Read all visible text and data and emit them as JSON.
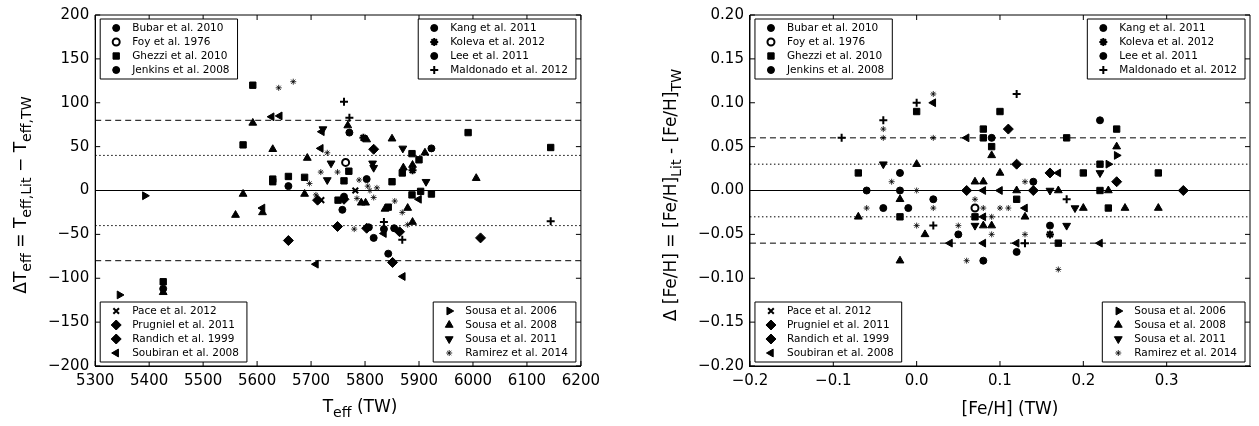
{
  "chart_data": [
    {
      "type": "scatter",
      "xlabel": "T$_{eff}$ (TW)",
      "ylabel": "ΔT$_{eff}$ = T$_{eff,Lit}$ − T$_{eff,TW}$",
      "xlim": [
        5300,
        6200
      ],
      "ylim": [
        -200,
        200
      ],
      "xticks": [
        5300,
        5400,
        5500,
        5600,
        5700,
        5800,
        5900,
        6000,
        6100,
        6200
      ],
      "yticks": [
        {
          "value": -200,
          "label": "−200"
        },
        {
          "value": -150,
          "label": "−150"
        },
        {
          "value": -100,
          "label": "−100"
        },
        {
          "value": -50,
          "label": "−50"
        },
        0,
        50,
        100,
        150,
        200
      ],
      "legend": "top left",
      "ref_lines": [
        {
          "axis": "y",
          "value": 80,
          "color": "#000000",
          "line_style": "dashed"
        },
        {
          "axis": "y",
          "value": -80,
          "color": "#000000",
          "line_style": "dashed"
        },
        {
          "axis": "y",
          "value": 40,
          "color": "#000000",
          "line_style": "dotted"
        },
        {
          "axis": "y",
          "value": -40,
          "color": "#000000",
          "line_style": "dotted"
        },
        {
          "axis": "y",
          "value": 0,
          "color": "#000000",
          "line_style": "solid"
        }
      ],
      "series": [
        {
          "name": "Bubar et al. 2010",
          "color": "#000000",
          "marker": "circle",
          "x": [
            5771,
            5658,
            5761,
            5426,
            5923
          ],
          "values": [
            66,
            5,
            -7,
            -112,
            48
          ]
        },
        {
          "name": "Foy et al. 1976",
          "color": "#000000",
          "marker": "open-circle",
          "x": [
            5764
          ],
          "values": [
            32
          ]
        },
        {
          "name": "Ghezzi et al. 2010",
          "color": "#000000",
          "marker": "square",
          "x": [
            5592,
            5574,
            5629,
            5629,
            5658,
            5688,
            5770,
            5761,
            5750,
            5426,
            5850,
            5869,
            5887,
            5900,
            5887,
            5903,
            5923,
            5991,
            6144,
            5843
          ],
          "values": [
            120,
            52,
            13,
            10,
            16,
            15,
            22,
            11,
            -11,
            -104,
            10,
            20,
            42,
            35,
            -5,
            -1,
            -4,
            66,
            49,
            -19
          ]
        },
        {
          "name": "Jenkins et al. 2008",
          "color": "#000000",
          "marker": "circle",
          "x": [
            5835
          ],
          "values": [
            -44
          ]
        },
        {
          "name": "Kang et al. 2011",
          "color": "#000000",
          "marker": "circle",
          "x": [
            5803,
            5854
          ],
          "values": [
            13,
            -43
          ]
        },
        {
          "name": "Koleva et al. 2012",
          "color": "#000000",
          "marker": "cross",
          "x": [
            5797,
            5888
          ],
          "values": [
            60,
            23
          ]
        },
        {
          "name": "Lee et al. 2011",
          "color": "#000000",
          "marker": "circle",
          "x": [
            5758,
            5807,
            5816,
            5843
          ],
          "values": [
            -22,
            -42,
            -54,
            -72
          ]
        },
        {
          "name": "Maldonado et al. 2012",
          "color": "#000000",
          "marker": "plus",
          "x": [
            5761,
            5771,
            5835,
            5869,
            6144
          ],
          "values": [
            101,
            83,
            -36,
            -56,
            -35
          ]
        },
        {
          "name": "Pace et al. 2012",
          "color": "#000000",
          "marker": "x",
          "x": [
            5782,
            5719
          ],
          "values": [
            0,
            -11
          ]
        },
        {
          "name": "Prugniel et al. 2011",
          "color": "#000000",
          "marker": "diamond",
          "x": [
            5658,
            5749,
            5712,
            5761,
            5816,
            5803,
            5864,
            5851
          ],
          "values": [
            -57,
            -41,
            -11,
            -10,
            47,
            -43,
            -47,
            -82
          ]
        },
        {
          "name": "Randich et al. 1999",
          "color": "#000000",
          "marker": "diamond",
          "x": [
            6014
          ],
          "values": [
            -54
          ]
        },
        {
          "name": "Soubiran et al. 2008",
          "color": "#000000",
          "marker": "triangle-left",
          "x": [
            5627,
            5642,
            5720,
            5718,
            5610,
            5709,
            5900,
            5870,
            5835
          ],
          "values": [
            84,
            85,
            67,
            48,
            -20,
            -84,
            -10,
            -98,
            -49
          ]
        },
        {
          "name": "Sousa et al. 2006",
          "color": "#000000",
          "marker": "triangle-right",
          "x": [
            5392,
            5345
          ],
          "values": [
            -6,
            -119
          ]
        },
        {
          "name": "Sousa et al. 2008",
          "color": "#000000",
          "marker": "triangle",
          "x": [
            5592,
            5768,
            5629,
            5693,
            5574,
            5560,
            5688,
            5801,
            5610,
            5426,
            5803,
            5850,
            5793,
            5871,
            5888,
            5911,
            6006,
            5879,
            5888,
            5837
          ],
          "values": [
            77,
            74,
            47,
            37,
            -4,
            -28,
            -4,
            -14,
            -25,
            -116,
            58,
            59,
            -14,
            26,
            29,
            43,
            14,
            -20,
            -36,
            -21
          ]
        },
        {
          "name": "Sousa et al. 2011",
          "color": "#000000",
          "marker": "triangle-down",
          "x": [
            5722,
            5737,
            5730,
            5814,
            5816,
            5870,
            5913
          ],
          "values": [
            70,
            31,
            12,
            31,
            26,
            48,
            10
          ]
        },
        {
          "name": "Ramirez et al. 2014",
          "color": "#000000",
          "x": [
            5640,
            5667,
            5730,
            5718,
            5697,
            5749,
            5709,
            5785,
            5780,
            5789,
            5805,
            5809,
            5822,
            5816,
            5855,
            5869,
            5879
          ],
          "values": [
            117,
            124,
            43,
            21,
            8,
            21,
            -5,
            -9,
            -44,
            12,
            5,
            0,
            3,
            -8,
            -12,
            -25,
            -39
          ]
        }
      ]
    },
    {
      "type": "scatter",
      "xlabel": "[Fe/H] (TW)",
      "ylabel": "Δ [Fe/H] = [Fe/H]$_{Lit}$ - [Fe/H]$_{TW}$",
      "xlim": [
        -0.2,
        0.4
      ],
      "ylim": [
        -0.2,
        0.2
      ],
      "xticks": [
        {
          "value": -0.2,
          "label": "−0.2"
        },
        {
          "value": -0.1,
          "label": "−0.1"
        },
        {
          "value": 0,
          "label": "0.0"
        },
        0.1,
        0.2,
        0.3
      ],
      "yticks": [
        {
          "value": -0.2,
          "label": "−0.20"
        },
        {
          "value": -0.15,
          "label": "−0.15"
        },
        {
          "value": -0.1,
          "label": "−0.10"
        },
        {
          "value": -0.05,
          "label": "−0.05"
        },
        {
          "value": 0,
          "label": "0.00"
        },
        0.05,
        {
          "value": 0.1,
          "label": "0.10"
        },
        0.15,
        {
          "value": 0.2,
          "label": "0.20"
        }
      ],
      "legend": "top left",
      "ref_lines": [
        {
          "axis": "y",
          "value": 0.06,
          "color": "#000000",
          "line_style": "dashed"
        },
        {
          "axis": "y",
          "value": -0.06,
          "color": "#000000",
          "line_style": "dashed"
        },
        {
          "axis": "y",
          "value": 0.03,
          "color": "#000000",
          "line_style": "dotted"
        },
        {
          "axis": "y",
          "value": -0.03,
          "color": "#000000",
          "line_style": "dotted"
        },
        {
          "axis": "y",
          "value": 0,
          "color": "#000000",
          "line_style": "solid"
        }
      ],
      "series": [
        {
          "name": "Bubar et al. 2010",
          "color": "#000000",
          "marker": "circle",
          "x": [
            -0.02,
            -0.06,
            -0.02,
            -0.04,
            -0.01,
            0.08
          ],
          "values": [
            0.02,
            0,
            0,
            -0.02,
            -0.02,
            -0.08
          ]
        },
        {
          "name": "Foy et al. 1976",
          "color": "#000000",
          "marker": "open-circle",
          "x": [
            0.07
          ],
          "values": [
            -0.02
          ]
        },
        {
          "name": "Ghezzi et al. 2010",
          "color": "#000000",
          "marker": "square",
          "x": [
            0,
            -0.07,
            -0.02,
            0.07,
            0.1,
            0.08,
            0.08,
            0.09,
            0.18,
            0.24,
            0.2,
            0.22,
            0.29,
            0.22,
            0.12,
            0.23,
            0.17
          ],
          "values": [
            0.09,
            0.02,
            -0.03,
            -0.03,
            0.09,
            0.07,
            0.06,
            0.05,
            0.06,
            0.07,
            0.02,
            0.03,
            0.02,
            0,
            -0.01,
            -0.02,
            -0.06
          ]
        },
        {
          "name": "Jenkins et al. 2008",
          "color": "#000000",
          "marker": "circle",
          "x": [
            0.02,
            0.05,
            0.09
          ],
          "values": [
            -0.01,
            -0.05,
            0.06
          ]
        },
        {
          "name": "Kang et al. 2011",
          "color": "#000000",
          "marker": "circle",
          "x": [
            0.22,
            0.16
          ],
          "values": [
            0.08,
            -0.04
          ]
        },
        {
          "name": "Koleva et al. 2012",
          "color": "#000000",
          "marker": "cross",
          "x": [
            0.16
          ],
          "values": [
            -0.05
          ]
        },
        {
          "name": "Lee et al. 2011",
          "color": "#000000",
          "marker": "circle",
          "x": [
            0.14,
            0.12
          ],
          "values": [
            0.01,
            -0.07
          ]
        },
        {
          "name": "Maldonado et al. 2012",
          "color": "#000000",
          "marker": "plus",
          "x": [
            -0.09,
            -0.04,
            0,
            0.02,
            0.12,
            0.18,
            0.13
          ],
          "values": [
            0.06,
            0.08,
            0.1,
            -0.04,
            0.11,
            -0.01,
            -0.06
          ]
        },
        {
          "name": "Pace et al. 2012",
          "color": "#000000",
          "marker": "x"
        },
        {
          "name": "Prugniel et al. 2011",
          "color": "#000000",
          "marker": "diamond",
          "x": [
            0.06,
            0.11,
            0.12,
            0.16,
            0.14,
            0.24
          ],
          "values": [
            0,
            0.07,
            0.03,
            0.02,
            0,
            0.01
          ]
        },
        {
          "name": "Randich et al. 1999",
          "color": "#000000",
          "marker": "diamond",
          "x": [
            0.32
          ],
          "values": [
            0
          ]
        },
        {
          "name": "Soubiran et al. 2008",
          "color": "#000000",
          "marker": "triangle-left",
          "x": [
            0.02,
            0.06,
            0.04,
            0.1,
            0.08,
            0.17,
            0.13,
            0.08,
            0.12,
            0.08,
            0.22
          ],
          "values": [
            0.1,
            0.06,
            -0.06,
            0,
            0,
            0.02,
            -0.02,
            -0.03,
            -0.06,
            -0.06,
            -0.06
          ]
        },
        {
          "name": "Sousa et al. 2006",
          "color": "#000000",
          "marker": "triangle-right",
          "x": [
            0.23,
            0.24
          ],
          "values": [
            0.03,
            0.04
          ]
        },
        {
          "name": "Sousa et al. 2008",
          "color": "#000000",
          "marker": "triangle",
          "x": [
            0,
            -0.07,
            -0.02,
            0.01,
            -0.02,
            0.07,
            0.09,
            0.1,
            0.08,
            0.12,
            0.17,
            0.13,
            0.08,
            0.09,
            0.2,
            0.25,
            0.29,
            0.24,
            0.23
          ],
          "values": [
            0.03,
            -0.03,
            -0.01,
            -0.05,
            -0.08,
            0.01,
            0.04,
            0.02,
            0.01,
            0,
            0,
            -0.03,
            -0.04,
            -0.04,
            -0.02,
            -0.02,
            -0.02,
            0.05,
            0
          ]
        },
        {
          "name": "Sousa et al. 2011",
          "color": "#000000",
          "marker": "triangle-down",
          "x": [
            -0.04,
            0.07,
            0.22,
            0.16,
            0.19,
            0.18
          ],
          "values": [
            0.03,
            -0.04,
            0.02,
            0,
            -0.02,
            -0.04
          ]
        },
        {
          "name": "Ramirez et al. 2014",
          "color": "#000000",
          "x": [
            -0.04,
            -0.04,
            0.02,
            0.02,
            -0.03,
            -0.06,
            0,
            0,
            0.02,
            0.05,
            0.06,
            0.07,
            0.13,
            0.08,
            0.1,
            0.11,
            0.09,
            0.09,
            0.13,
            0.17
          ],
          "values": [
            0.07,
            0.06,
            0.11,
            0.06,
            0.01,
            -0.02,
            0,
            -0.04,
            -0.02,
            -0.04,
            -0.08,
            -0.01,
            0.01,
            -0.02,
            -0.02,
            -0.02,
            -0.03,
            -0.05,
            -0.05,
            -0.09
          ]
        }
      ]
    }
  ]
}
